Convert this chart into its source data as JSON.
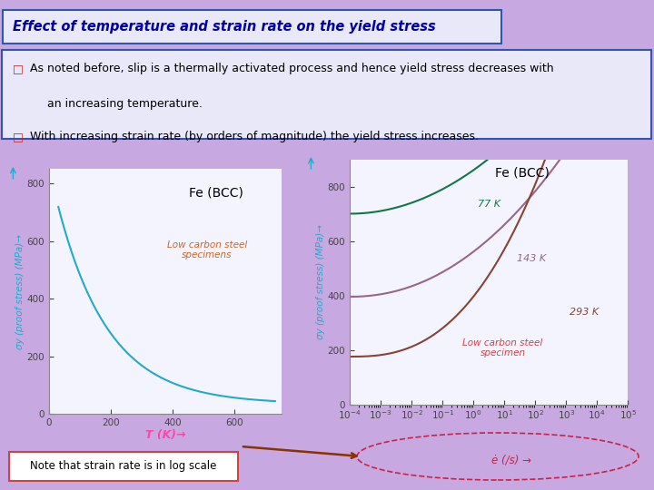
{
  "bg_color": "#c8a8e0",
  "title_box_text": "Effect of temperature and strain rate on the yield stress",
  "title_box_bg": "#e8e8f8",
  "title_box_border": "#3355aa",
  "bullet_color": "#cc2222",
  "bullet1_line1": "As noted before, slip is a thermally activated process and hence yield stress decreases with",
  "bullet1_line2": "an increasing temperature.",
  "bullet2": "With increasing strain rate (by orders of magnitude) the yield stress increases.",
  "plot1_title": "Fe (BCC)",
  "plot1_xlabel": "T (K)→",
  "plot1_ylabel": "σy (proof stress) (MPa)→",
  "plot1_ylabel_color": "#22aacc",
  "plot1_xlabel_color": "#ff44aa",
  "plot1_curve_color": "#22aacc",
  "plot1_annotation": "Low carbon steel\nspecimens",
  "plot1_annotation_color": "#cc6622",
  "plot2_title": "Fe (BCC)",
  "plot2_ylabel": "σy (proof stress) (MPa)→",
  "plot2_ylabel_color": "#22aacc",
  "plot2_xlabel": "ė (/s) →",
  "plot2_xlabel_color": "#cc2244",
  "plot2_curve_colors": [
    "#117744",
    "#996688",
    "#884433"
  ],
  "plot2_label_colors": [
    "#117744",
    "#996688",
    "#884433"
  ],
  "plot2_labels": [
    "77 K",
    "143 K",
    "293 K"
  ],
  "plot2_annotation": "Low carbon steel\nspecimen",
  "plot2_annotation_color": "#cc4444",
  "note_text": "Note that strain rate is in log scale",
  "note_bg": "#ffffff",
  "note_border": "#cc4444"
}
